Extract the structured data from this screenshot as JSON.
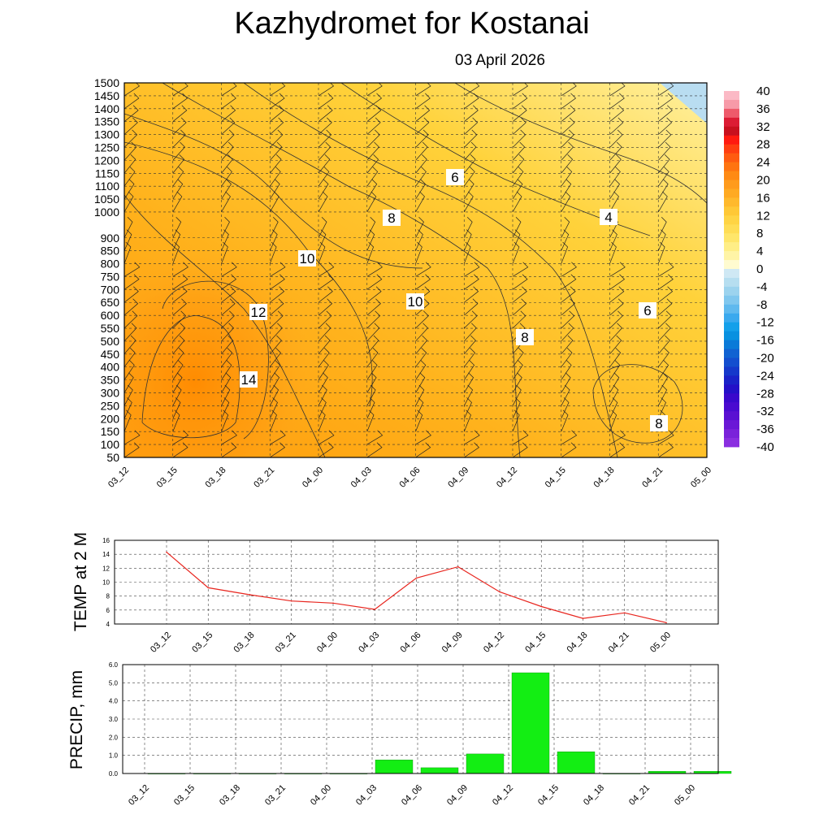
{
  "header": {
    "title": "Kazhydromet  for Kostanai",
    "date": "03 April 2026"
  },
  "colors": {
    "temp_line": "#e8251e",
    "precip_bar": "#13ee13",
    "warm_max": "#ff8c00",
    "cold_top": "#b9ddf1"
  },
  "chart_data": [
    {
      "type": "heatmap",
      "title": "",
      "xlabel": "",
      "ylabel": "",
      "x_ticks": [
        "03_12",
        "03_15",
        "03_18",
        "03_21",
        "04_00",
        "04_03",
        "04_06",
        "04_09",
        "04_12",
        "04_15",
        "04_18",
        "04_21",
        "05_00"
      ],
      "y_ticks": [
        1500,
        1450,
        1400,
        1350,
        1300,
        1250,
        1200,
        1150,
        1100,
        1050,
        1000,
        900,
        850,
        800,
        750,
        700,
        650,
        600,
        550,
        500,
        450,
        400,
        350,
        300,
        250,
        200,
        150,
        100,
        50
      ],
      "ylim": [
        50,
        1500
      ],
      "colorbar_labels": [
        "40",
        "36",
        "32",
        "28",
        "24",
        "20",
        "16",
        "12",
        "8",
        "4",
        "0",
        "-4",
        "-8",
        "-12",
        "-16",
        "-20",
        "-24",
        "-28",
        "-32",
        "-36",
        "-40"
      ],
      "contour_labels": [
        "6",
        "8",
        "4",
        "10",
        "10",
        "6",
        "12",
        "8",
        "14",
        "8"
      ],
      "grid": true
    },
    {
      "type": "line",
      "title": "",
      "xlabel": "",
      "ylabel": "TEMP at 2 M",
      "x": [
        "03_12",
        "03_15",
        "03_18",
        "03_21",
        "04_00",
        "04_03",
        "04_06",
        "04_09",
        "04_12",
        "04_15",
        "04_18",
        "04_21",
        "05_00"
      ],
      "series": [
        {
          "values": [
            14.3,
            9.2,
            8.2,
            7.3,
            7.0,
            6.1,
            10.6,
            12.2,
            8.6,
            6.5,
            4.8,
            5.6,
            4.2
          ]
        }
      ],
      "y_ticks": [
        "16",
        "14",
        "12",
        "10",
        "8",
        "6",
        "4"
      ],
      "ylim": [
        4,
        16
      ],
      "grid": true
    },
    {
      "type": "bar",
      "title": "",
      "xlabel": "",
      "ylabel": "PRECIP, mm",
      "categories": [
        "03_12",
        "03_15",
        "03_18",
        "03_21",
        "04_00",
        "04_03",
        "04_06",
        "04_09",
        "04_12",
        "04_15",
        "04_18",
        "04_21",
        "05_00"
      ],
      "values": [
        0,
        0,
        0,
        0,
        0,
        0.75,
        0.32,
        1.08,
        5.55,
        1.2,
        0,
        0.12,
        0.12
      ],
      "y_ticks": [
        "6.0",
        "5.0",
        "4.0",
        "3.0",
        "2.0",
        "1.0",
        "0.0"
      ],
      "ylim": [
        0,
        6
      ],
      "grid": true
    }
  ]
}
